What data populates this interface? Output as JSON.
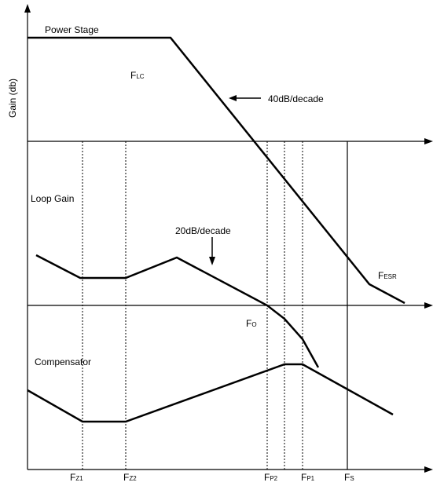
{
  "diagram": {
    "y_axis_label": "Gain (db)",
    "section_labels": {
      "power_stage": "Power Stage",
      "loop_gain": "Loop Gain",
      "compensator": "Compensator"
    },
    "annotations": {
      "slope_40": "40dB/decade",
      "slope_20": "20dB/decade",
      "f_lc_main": "F",
      "f_lc_sub": "LC",
      "f_esr_main": "F",
      "f_esr_sub": "ESR",
      "f_o_main": "F",
      "f_o_sub": "O"
    },
    "x_ticks": [
      {
        "main": "F",
        "sub": "Z1"
      },
      {
        "main": "F",
        "sub": "Z2"
      },
      {
        "main": "F",
        "sub": "P2"
      },
      {
        "main": "F",
        "sub": "P1"
      },
      {
        "main": "F",
        "sub": "S"
      }
    ]
  }
}
